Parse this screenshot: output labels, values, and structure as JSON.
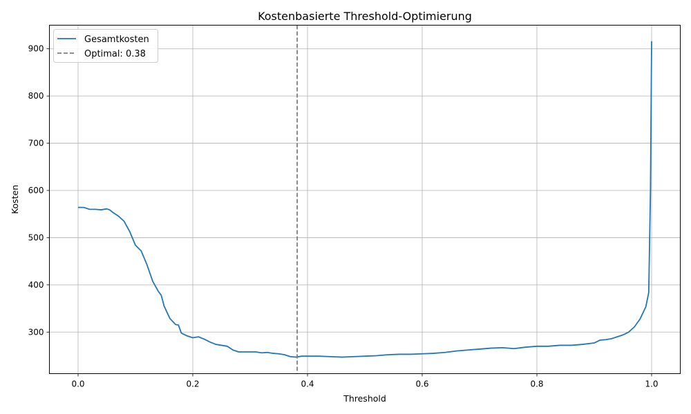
{
  "chart_data": {
    "type": "line",
    "title": "Kostenbasierte Threshold-Optimierung",
    "xlabel": "Threshold",
    "ylabel": "Kosten",
    "xlim": [
      -0.05,
      1.05
    ],
    "ylim": [
      212,
      950
    ],
    "xticks": [
      0.0,
      0.2,
      0.4,
      0.6,
      0.8,
      1.0
    ],
    "xtick_labels": [
      "0.0",
      "0.2",
      "0.4",
      "0.6",
      "0.8",
      "1.0"
    ],
    "yticks": [
      300,
      400,
      500,
      600,
      700,
      800,
      900
    ],
    "ytick_labels": [
      "300",
      "400",
      "500",
      "600",
      "700",
      "800",
      "900"
    ],
    "grid": true,
    "legend_position": "top-left",
    "series": [
      {
        "name": "Gesamtkosten",
        "color": "#1f77b4",
        "style": "solid",
        "x": [
          0.0,
          0.01,
          0.02,
          0.03,
          0.04,
          0.05,
          0.055,
          0.06,
          0.07,
          0.08,
          0.09,
          0.1,
          0.11,
          0.12,
          0.13,
          0.14,
          0.145,
          0.15,
          0.16,
          0.17,
          0.175,
          0.18,
          0.19,
          0.2,
          0.21,
          0.22,
          0.23,
          0.24,
          0.25,
          0.26,
          0.27,
          0.28,
          0.29,
          0.3,
          0.31,
          0.32,
          0.33,
          0.34,
          0.35,
          0.36,
          0.37,
          0.38,
          0.39,
          0.4,
          0.42,
          0.44,
          0.46,
          0.48,
          0.5,
          0.52,
          0.54,
          0.56,
          0.58,
          0.6,
          0.62,
          0.64,
          0.66,
          0.68,
          0.7,
          0.72,
          0.74,
          0.76,
          0.78,
          0.8,
          0.82,
          0.84,
          0.86,
          0.88,
          0.9,
          0.91,
          0.92,
          0.93,
          0.94,
          0.95,
          0.96,
          0.97,
          0.98,
          0.99,
          0.995,
          0.998,
          1.0
        ],
        "y": [
          564,
          564,
          560,
          560,
          559,
          561,
          559,
          554,
          546,
          535,
          513,
          484,
          472,
          443,
          408,
          386,
          378,
          355,
          329,
          316,
          315,
          298,
          292,
          288,
          290,
          285,
          279,
          274,
          272,
          270,
          262,
          258,
          258,
          258,
          258,
          256,
          257,
          255,
          254,
          252,
          248,
          247,
          249,
          249,
          249,
          248,
          247,
          248,
          249,
          250,
          252,
          253,
          253,
          254,
          255,
          257,
          260,
          262,
          264,
          266,
          267,
          265,
          268,
          270,
          270,
          272,
          272,
          274,
          277,
          283,
          284,
          286,
          290,
          294,
          300,
          311,
          328,
          354,
          384,
          600,
          916
        ]
      },
      {
        "name": "Optimal: 0.38",
        "color": "#7f7f7f",
        "style": "dashed",
        "vline_x": 0.382
      }
    ]
  }
}
